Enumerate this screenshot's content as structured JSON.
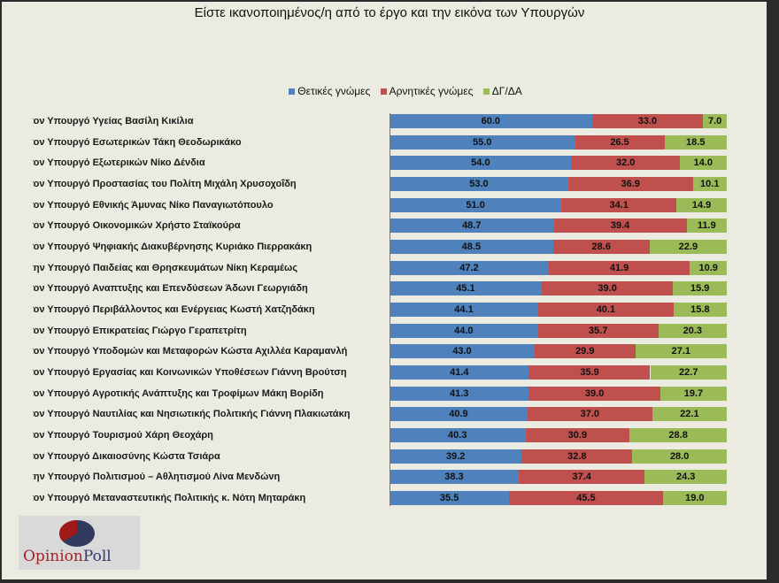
{
  "chart_data": {
    "type": "bar",
    "orientation": "horizontal",
    "stacked": true,
    "title": "Είστε ικανοποιημένος/η από το έργο και την εικόνα των Υπουργών",
    "legend_position": "top",
    "xlim": [
      0,
      100
    ],
    "grid": false,
    "categories": [
      "τον Υπουργό Υγείας Βασίλη Κικίλια",
      "τον Υπουργό Εσωτερικών Τάκη Θεοδωρικάκο",
      "τον Υπουργό Εξωτερικών Νίκο Δένδια",
      "τον Υπουργό Προστασίας του Πολίτη Μιχάλη Χρυσοχοΐδη",
      "τον Υπουργό Εθνικής Άμυνας Νίκο Παναγιωτόπουλο",
      "τον Υπουργό Οικονομικών Χρήστο Σταϊκούρα",
      "τον Υπουργό Ψηφιακής Διακυβέρνησης Κυριάκο Πιερρακάκη",
      "την Υπουργό Παιδείας και Θρησκευμάτων Νίκη Κεραμέως",
      "τον Υπουργό Αναπτυξης και Επενδύσεων Άδωνι Γεωργιάδη",
      "τον Υπουργό Περιβάλλοντος και Ενέργειας Κωστή Χατζηδάκη",
      "τον Υπουργό Επικρατείας Γιώργο Γεραπετρίτη",
      "τον Υπουργό Υποδομών και Μεταφορών Κώστα Αχιλλέα Καραμανλή",
      "τον Υπουργό Εργασίας και Κοινωνικών Υποθέσεων Γιάννη Βρούτση",
      "τον Υπουργό Αγροτικής Ανάπτυξης και Τροφίμων Μάκη Βορίδη",
      "τον Υπουργό Ναυτιλίας και Νησιωτικής Πολιτικής Γιάννη Πλακιωτάκη",
      "τον Υπουργό Τουρισμού Χάρη Θεοχάρη",
      "τον Υπουργό Δικαιοσύνης Κώστα Τσιάρα",
      "την Υπουργό Πολιτισμού – Αθλητισμού Λίνα Μενδώνη",
      "τον Υπουργό Μεταναστευτικής Πολιτικής κ. Νότη Μηταράκη"
    ],
    "series": [
      {
        "name": "Θετικές γνώμες",
        "color": "#4f81bd",
        "values": [
          60.0,
          55.0,
          54.0,
          53.0,
          51.0,
          48.7,
          48.5,
          47.2,
          45.1,
          44.1,
          44.0,
          43.0,
          41.4,
          41.3,
          40.9,
          40.3,
          39.2,
          38.3,
          35.5
        ]
      },
      {
        "name": "Αρνητικές γνώμες",
        "color": "#c0504d",
        "values": [
          33.0,
          26.5,
          32.0,
          36.9,
          34.1,
          39.4,
          28.6,
          41.9,
          39.0,
          40.1,
          35.7,
          29.9,
          35.9,
          39.0,
          37.0,
          30.9,
          32.8,
          37.4,
          45.5
        ]
      },
      {
        "name": "ΔΓ/ΔΑ",
        "color": "#9bbb59",
        "values": [
          7.0,
          18.5,
          14.0,
          10.1,
          14.9,
          11.9,
          22.9,
          10.9,
          15.9,
          15.8,
          20.3,
          27.1,
          22.7,
          19.7,
          22.1,
          28.8,
          28.0,
          24.3,
          19.0
        ]
      }
    ]
  },
  "logo": {
    "text_a": "Opinion",
    "text_b": "Poll"
  }
}
